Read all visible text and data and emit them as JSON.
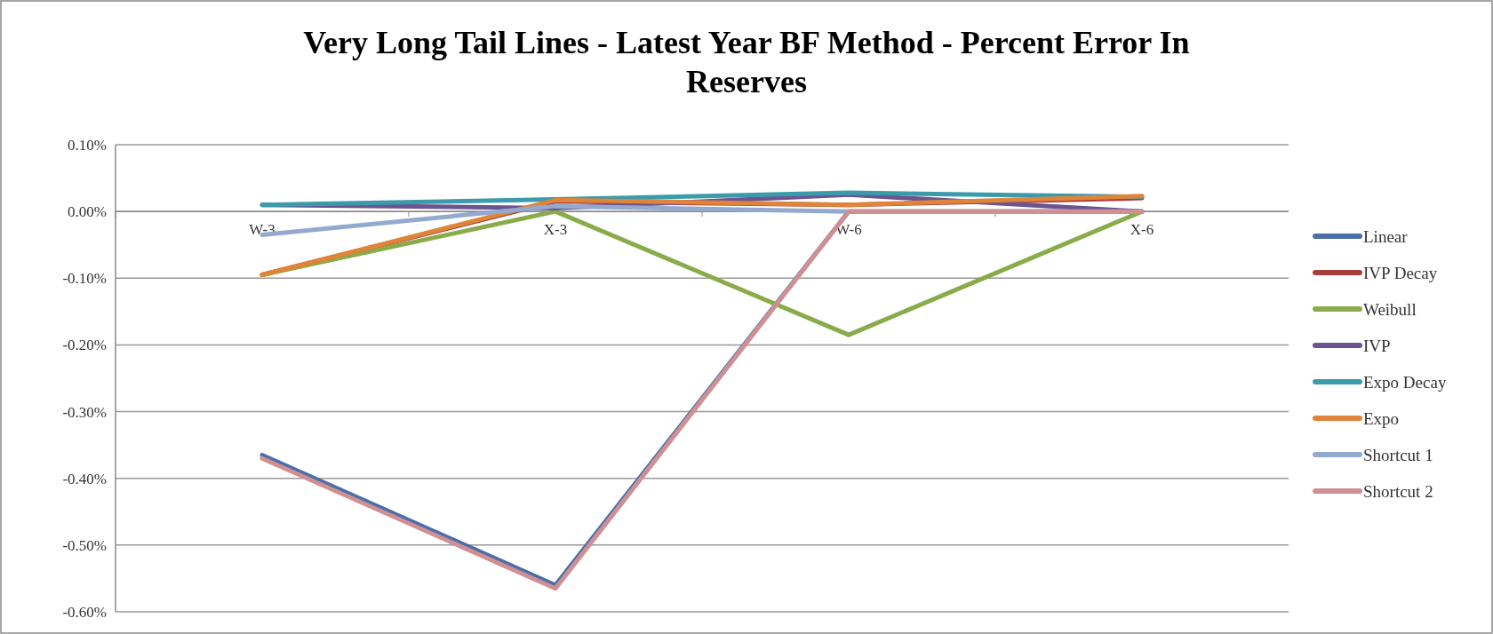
{
  "chart_data": {
    "type": "line",
    "title": "Very Long Tail Lines - Latest Year BF Method - Percent Error In Reserves",
    "categories": [
      "W-3",
      "X-3",
      "W-6",
      "X-6"
    ],
    "series": [
      {
        "name": "Linear",
        "color": "#4a6fa8",
        "values": [
          -0.365,
          -0.56,
          0.0,
          0.0
        ]
      },
      {
        "name": "IVP Decay",
        "color": "#a83e3b",
        "values": [
          -0.095,
          0.015,
          0.01,
          0.02
        ]
      },
      {
        "name": "Weibull",
        "color": "#8aab4a",
        "values": [
          -0.095,
          0.0,
          -0.185,
          0.0
        ]
      },
      {
        "name": "IVP",
        "color": "#6c5491",
        "values": [
          0.01,
          0.005,
          0.025,
          0.0
        ]
      },
      {
        "name": "Expo Decay",
        "color": "#3b9bab",
        "values": [
          0.01,
          0.018,
          0.028,
          0.022
        ]
      },
      {
        "name": "Expo",
        "color": "#e0843a",
        "values": [
          -0.095,
          0.017,
          0.01,
          0.023
        ]
      },
      {
        "name": "Shortcut 1",
        "color": "#93a9cf",
        "values": [
          -0.035,
          0.008,
          0.0,
          0.0
        ]
      },
      {
        "name": "Shortcut 2",
        "color": "#cf8f93",
        "values": [
          -0.37,
          -0.565,
          0.0,
          0.0
        ]
      }
    ],
    "ylim": [
      -0.6,
      0.1
    ],
    "yticks": [
      {
        "value": 0.1,
        "label": "0.10%"
      },
      {
        "value": 0.0,
        "label": "0.00%"
      },
      {
        "value": -0.1,
        "label": "-0.10%"
      },
      {
        "value": -0.2,
        "label": "-0.20%"
      },
      {
        "value": -0.3,
        "label": "-0.30%"
      },
      {
        "value": -0.4,
        "label": "-0.40%"
      },
      {
        "value": -0.5,
        "label": "-0.50%"
      },
      {
        "value": -0.6,
        "label": "-0.60%"
      }
    ],
    "grid": "y",
    "legend": "right",
    "marker": "none",
    "line_style": "solid"
  }
}
